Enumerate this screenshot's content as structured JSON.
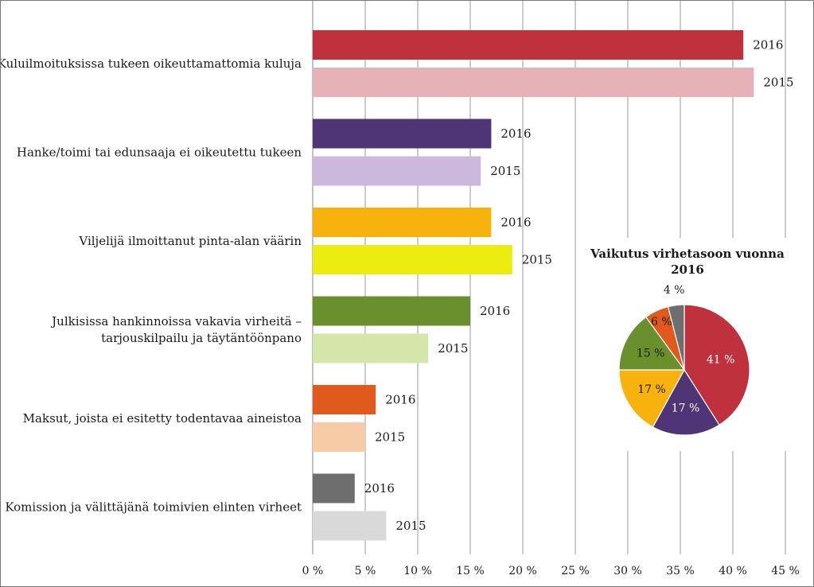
{
  "chart_data": [
    {
      "type": "bar",
      "orientation": "horizontal",
      "categories": [
        "Kuluilmoituksissa tukeen oikeuttamattomia kuluja",
        "Hanke/toimi tai edunsaaja ei oikeutettu tukeen",
        "Viljelijä ilmoittanut pinta-alan väärin",
        "Julkisissa hankinnoissa vakavia virheitä – tarjouskilpailu ja täytäntöönpano",
        "Maksut, joista ei esitetty todentavaa aineistoa",
        "Komission ja välittäjänä toimivien elinten virheet"
      ],
      "category_lines": [
        [
          "Kuluilmoituksissa tukeen oikeuttamattomia kuluja"
        ],
        [
          "Hanke/toimi tai edunsaaja ei oikeutettu tukeen"
        ],
        [
          "Viljelijä ilmoittanut pinta-alan väärin"
        ],
        [
          "Julkisissa hankinnoissa vakavia virheitä –",
          "tarjouskilpailu ja täytäntöönpano"
        ],
        [
          "Maksut, joista ei esitetty todentavaa aineistoa"
        ],
        [
          "Komission ja välittäjänä toimivien elinten virheet"
        ]
      ],
      "series": [
        {
          "name": "2016",
          "values": [
            41,
            17,
            17,
            15,
            6,
            4
          ],
          "colors": [
            "#c0313e",
            "#4f3575",
            "#f7b20e",
            "#6a8f2d",
            "#e05a1e",
            "#6e6e6e"
          ]
        },
        {
          "name": "2015",
          "values": [
            42,
            16,
            19,
            11,
            5,
            7
          ],
          "colors": [
            "#e7b2b7",
            "#ccb8dd",
            "#ecec10",
            "#d4e6a9",
            "#f8cba7",
            "#d9d9d9"
          ]
        }
      ],
      "xticks": [
        "0 %",
        "5 %",
        "10 %",
        "15 %",
        "20 %",
        "25 %",
        "30 %",
        "35 %",
        "40 %",
        "45 %"
      ],
      "xlim": [
        0,
        45
      ],
      "grid": true
    },
    {
      "type": "pie",
      "title_lines": [
        "Vaikutus virhetasoon vuonna",
        "2016"
      ],
      "labels": [
        "41 %",
        "17 %",
        "17 %",
        "15 %",
        "6 %",
        "4 %"
      ],
      "values": [
        41,
        17,
        17,
        15,
        6,
        4
      ],
      "colors": [
        "#c0313e",
        "#4f3575",
        "#f7b20e",
        "#6a8f2d",
        "#e05a1e",
        "#6e6e6e"
      ],
      "label_colors": [
        "#ffffff",
        "#ffffff",
        "#1a1a1a",
        "#1a1a1a",
        "#1a1a1a",
        "#1a1a1a"
      ]
    }
  ]
}
